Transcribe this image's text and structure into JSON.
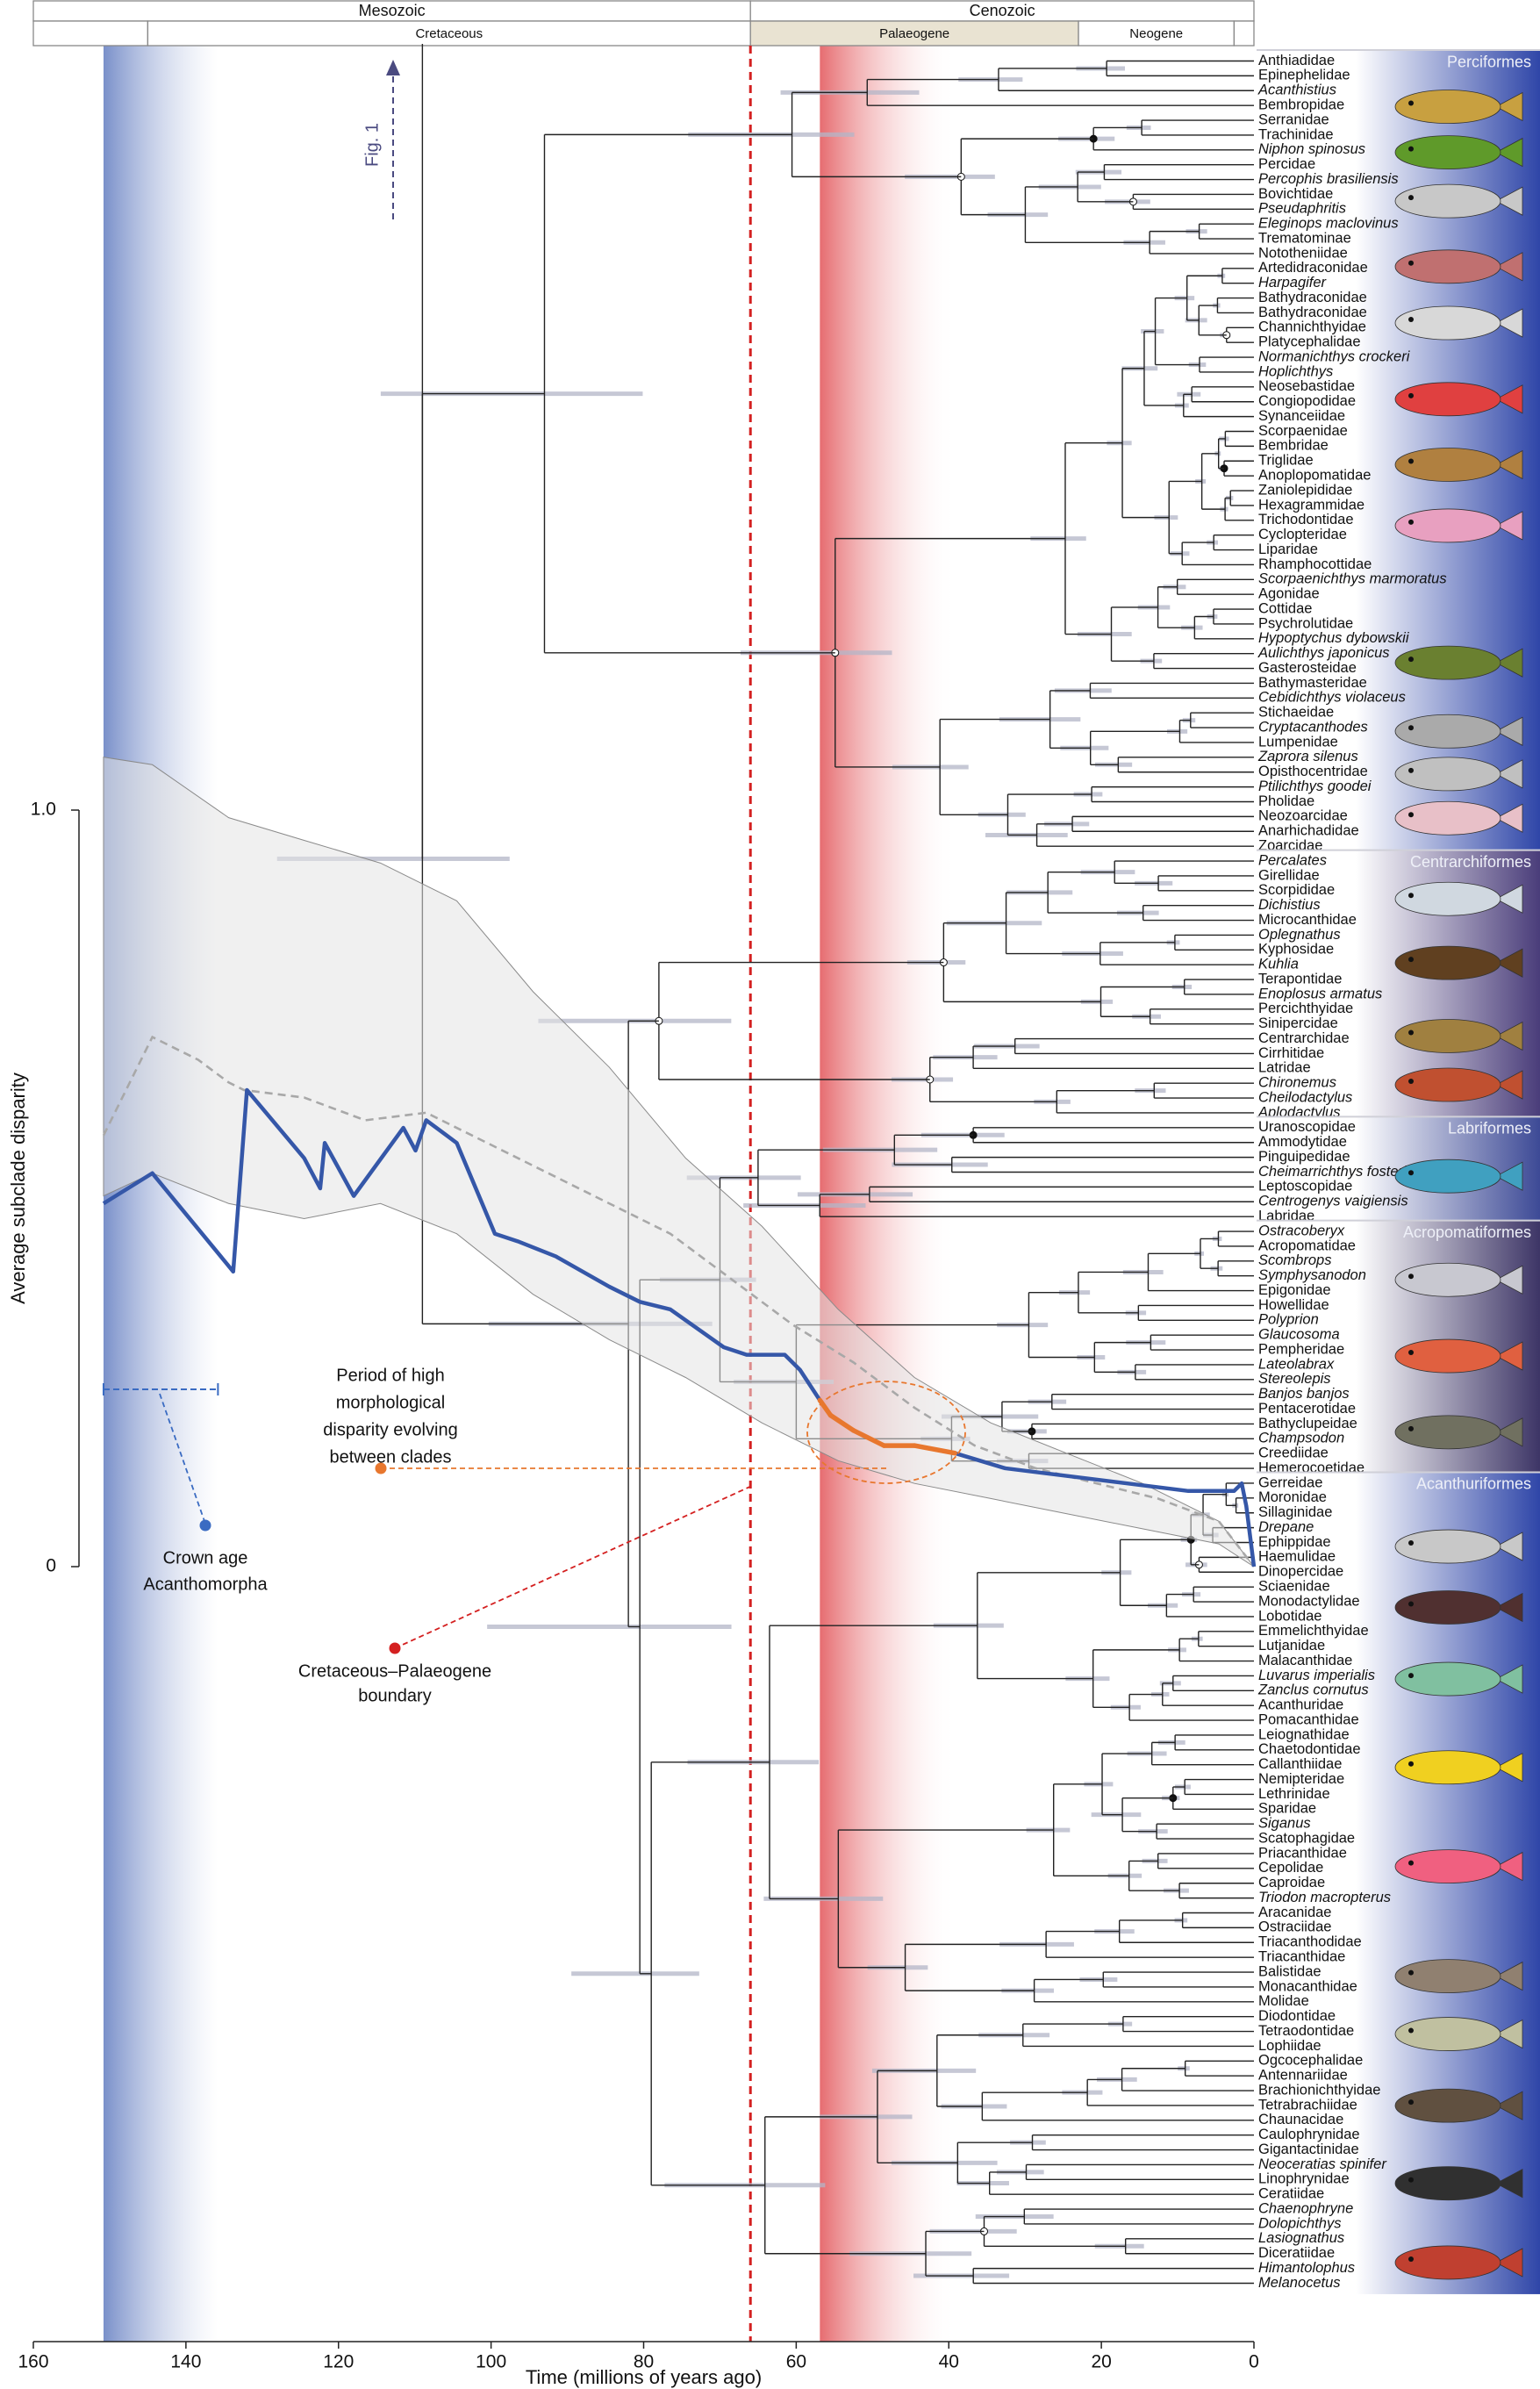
{
  "chart_data": {
    "type": "phylogeny_disparity",
    "x_label": "Time (millions of years ago)",
    "y_label": "Average subclade disparity",
    "xlim": [
      160,
      0
    ],
    "xticks": [
      160,
      140,
      120,
      100,
      80,
      60,
      40,
      20,
      0
    ],
    "ylim": [
      0,
      1
    ],
    "yticks": [
      {
        "value": 1,
        "label": "1.0"
      },
      0
    ],
    "eras": [
      {
        "name": "Mesozoic",
        "start": 160,
        "end": 66
      },
      {
        "name": "Cenozoic",
        "start": 66,
        "end": 0
      }
    ],
    "periods": [
      {
        "name": null,
        "start": 160,
        "end": 145,
        "fill": "#ffffff"
      },
      {
        "name": "Cretaceous",
        "start": 145,
        "end": 66,
        "fill": "#ffffff"
      },
      {
        "name": "Palaeogene",
        "start": 66,
        "end": 23,
        "fill": "#e9e3d2"
      },
      {
        "name": "Neogene",
        "start": 23,
        "end": 2.6,
        "fill": "#ffffff"
      },
      {
        "name": null,
        "start": 2.6,
        "end": 0,
        "fill": "#ffffff"
      }
    ],
    "crown_band": {
      "range": [
        150.8,
        135.8
      ],
      "color": "#4d6bb8"
    },
    "radiation_band": {
      "range": [
        56.9,
        39.0
      ],
      "color": "#e0474c"
    },
    "kpg_boundary": {
      "value": 66,
      "color": "#d42020"
    },
    "disparity": {
      "null_range": {
        "color": "#e4e4e4",
        "x": [
          150.8,
          144.4,
          134.4,
          124.5,
          114.5,
          104.5,
          94.5,
          84.5,
          74.5,
          64.5,
          54.5,
          44.5,
          34.5,
          24.6,
          14.6,
          4.6,
          0
        ],
        "upper": [
          1.07,
          1.06,
          0.99,
          0.96,
          0.93,
          0.88,
          0.76,
          0.66,
          0.54,
          0.45,
          0.34,
          0.25,
          0.19,
          0.15,
          0.11,
          0.06,
          0
        ],
        "lower": [
          0.49,
          0.52,
          0.48,
          0.46,
          0.48,
          0.44,
          0.36,
          0.3,
          0.25,
          0.19,
          0.14,
          0.11,
          0.09,
          0.07,
          0.05,
          0.03,
          0
        ]
      },
      "null_median": {
        "color": "#a8a8a8",
        "dashed": true,
        "x": [
          150.8,
          144.4,
          138.4,
          134.4,
          132.4,
          124.5,
          116.5,
          108.5,
          100.5,
          92.5,
          84.5,
          76.5,
          68.5,
          60.5,
          52.5,
          44.5,
          36.6,
          28.6,
          20.6,
          12.6,
          4.6,
          0
        ],
        "values": [
          0.57,
          0.7,
          0.67,
          0.64,
          0.63,
          0.62,
          0.59,
          0.6,
          0.56,
          0.52,
          0.48,
          0.44,
          0.38,
          0.32,
          0.27,
          0.21,
          0.16,
          0.13,
          0.11,
          0.09,
          0.06,
          0
        ]
      },
      "observed": {
        "color": "#3557a8",
        "x": [
          150.8,
          144.4,
          133.8,
          132.0,
          124.5,
          122.4,
          121.8,
          118.0,
          111.5,
          109.9,
          108.5,
          104.5,
          99.5,
          96.5,
          91.5,
          84.5,
          80.5,
          76.5,
          69.5,
          66.5,
          61.5,
          59.5,
          56.9,
          55.5,
          52.5,
          48.5,
          44.5,
          39.2,
          32.6,
          24.6,
          16.6,
          8.6,
          2.6,
          1.6,
          1.0,
          0
        ],
        "values": [
          0.48,
          0.52,
          0.39,
          0.63,
          0.54,
          0.5,
          0.56,
          0.49,
          0.58,
          0.55,
          0.59,
          0.56,
          0.44,
          0.43,
          0.41,
          0.37,
          0.35,
          0.34,
          0.29,
          0.28,
          0.28,
          0.26,
          0.22,
          0.2,
          0.18,
          0.16,
          0.16,
          0.15,
          0.13,
          0.12,
          0.11,
          0.1,
          0.1,
          0.11,
          0.08,
          0
        ],
        "highlight": {
          "color": "#e8772e",
          "range": [
            56.9,
            39.2
          ]
        }
      }
    },
    "annotations": {
      "fig_ref": "Fig. 1",
      "crown_age": [
        "Crown age",
        "Acanthomorpha"
      ],
      "high_disparity": [
        "Period of high",
        "morphological",
        "disparity evolving",
        "between clades"
      ],
      "kpg": [
        "Cretaceous–Palaeogene",
        "boundary"
      ]
    },
    "clades": [
      {
        "name": "Perciformes",
        "color": "#2f46a8",
        "taxa": [
          "Anthiadidae",
          "Epinephelidae",
          "Acanthistius",
          "Bembropidae",
          "Serranidae",
          "Trachinidae",
          "Niphon spinosus",
          "Percidae",
          "Percophis brasiliensis",
          "Bovichtidae",
          "Pseudaphritis",
          "Eleginops maclovinus",
          "Trematominae",
          "Nototheniidae",
          "Artedidraconidae",
          "Harpagifer",
          "Bathydraconidae",
          "Bathydraconidae",
          "Channichthyidae",
          "Platycephalidae",
          "Normanichthys crockeri",
          "Hoplichthys",
          "Neosebastidae",
          "Congiopodidae",
          "Synanceiidae",
          "Scorpaenidae",
          "Bembridae",
          "Triglidae",
          "Anoplopomatidae",
          "Zaniolepididae",
          "Hexagrammidae",
          "Trichodontidae",
          "Cyclopteridae",
          "Liparidae",
          "Rhamphocottidae",
          "Scorpaenichthys marmoratus",
          "Agonidae",
          "Cottidae",
          "Psychrolutidae",
          "Hypoptychus dybowskii",
          "Aulichthys japonicus",
          "Gasterosteidae",
          "Bathymasteridae",
          "Cebidichthys violaceus",
          "Stichaeidae",
          "Cryptacanthodes",
          "Lumpenidae",
          "Zaprora silenus",
          "Opisthocentridae",
          "Ptilichthys goodei",
          "Pholidae",
          "Neozoarcidae",
          "Anarhichadidae",
          "Zoarcidae"
        ]
      },
      {
        "name": "Centrarchiformes",
        "color": "#4a3d7a",
        "taxa": [
          "Percalates",
          "Girellidae",
          "Scorpididae",
          "Dichistius",
          "Microcanthidae",
          "Oplegnathus",
          "Kyphosidae",
          "Kuhlia",
          "Terapontidae",
          "Enoplosus armatus",
          "Percichthyidae",
          "Sinipercidae",
          "Centrarchidae",
          "Cirrhitidae",
          "Latridae",
          "Chironemus",
          "Cheilodactylus",
          "Aplodactylus"
        ]
      },
      {
        "name": "Labriformes",
        "color": "#3d4a96",
        "taxa": [
          "Uranoscopidae",
          "Ammodytidae",
          "Pinguipedidae",
          "Cheimarrichthys fosteri",
          "Leptoscopidae",
          "Centrogenys vaigiensis",
          "Labridae"
        ]
      },
      {
        "name": "Acropomatiformes",
        "color": "#3d3566",
        "taxa": [
          "Ostracoberyx",
          "Acropomatidae",
          "Scombrops",
          "Symphysanodon",
          "Epigonidae",
          "Howellidae",
          "Polyprion",
          "Glaucosoma",
          "Pempheridae",
          "Lateolabrax",
          "Stereolepis",
          "Banjos banjos",
          "Pentacerotidae",
          "Bathyclupeidae",
          "Champsodon",
          "Creediidae",
          "Hemerocoetidae"
        ]
      },
      {
        "name": "Acanthuriformes",
        "color": "#2f46a8",
        "taxa": [
          "Gerreidae",
          "Moronidae",
          "Sillaginidae",
          "Drepane",
          "Ephippidae",
          "Haemulidae",
          "Dinopercidae",
          "Sciaenidae",
          "Monodactylidae",
          "Lobotidae",
          "Emmelichthyidae",
          "Lutjanidae",
          "Malacanthidae",
          "Luvarus imperialis",
          "Zanclus cornutus",
          "Acanthuridae",
          "Pomacanthidae",
          "Leiognathidae",
          "Chaetodontidae",
          "Callanthiidae",
          "Nemipteridae",
          "Lethrinidae",
          "Sparidae",
          "Siganus",
          "Scatophagidae",
          "Priacanthidae",
          "Cepolidae",
          "Caproidae",
          "Triodon macropterus",
          "Aracanidae",
          "Ostraciidae",
          "Triacanthodidae",
          "Triacanthidae",
          "Balistidae",
          "Monacanthidae",
          "Molidae",
          "Diodontidae",
          "Tetraodontidae",
          "Lophiidae",
          "Ogcocephalidae",
          "Antennariidae",
          "Brachionichthyidae",
          "Tetrabrachiidae",
          "Chaunacidae",
          "Caulophrynidae",
          "Gigantactinidae",
          "Neoceratias spinifer",
          "Linophrynidae",
          "Ceratiidae",
          "Chaenophryne",
          "Dolopichthys",
          "Lasiognathus",
          "Diceratiidae",
          "Himantolophus",
          "Melanocetus"
        ]
      }
    ]
  }
}
